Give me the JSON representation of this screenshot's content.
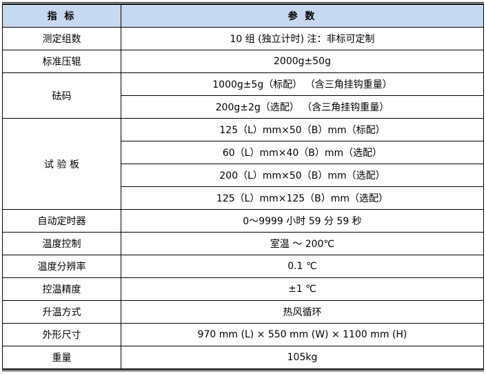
{
  "header": {
    "col1": "指 标",
    "col2": "参 数"
  },
  "rows": [
    {
      "label": "测定组数",
      "values": [
        "10 组 (独立计时)   注：非标可定制"
      ]
    },
    {
      "label": "标准压辊",
      "values": [
        "2000g±50g"
      ]
    },
    {
      "label": "砝码",
      "values": [
        "1000g±5g（标配） （含三角挂钩重量）",
        "200g±2g（选配）   （含三角挂钩重量）"
      ]
    },
    {
      "label": "试 验 板",
      "values": [
        "125（L）mm×50（B）mm（标配）",
        "60（L）mm×40（B）mm（选配）",
        "200（L）mm×50（B）mm（选配）",
        "125（L）mm×125（B）mm（选配）"
      ]
    },
    {
      "label": "自动定时器",
      "values": [
        "0～9999 小时 59 分 59 秒"
      ]
    },
    {
      "label": "温度控制",
      "values": [
        "室温  ～ 200℃"
      ]
    },
    {
      "label": "温度分辨率",
      "values": [
        "0.1 ℃"
      ]
    },
    {
      "label": "控温精度",
      "values": [
        "±1 ℃"
      ]
    },
    {
      "label": "升温方式",
      "values": [
        "热风循环"
      ]
    },
    {
      "label": "外形尺寸",
      "values": [
        "970 mm (L) × 550 mm (W) × 1100 mm (H)"
      ]
    },
    {
      "label": "重量",
      "values": [
        "105kg"
      ]
    }
  ],
  "colors": {
    "header_bg": "#c6d9f0"
  }
}
